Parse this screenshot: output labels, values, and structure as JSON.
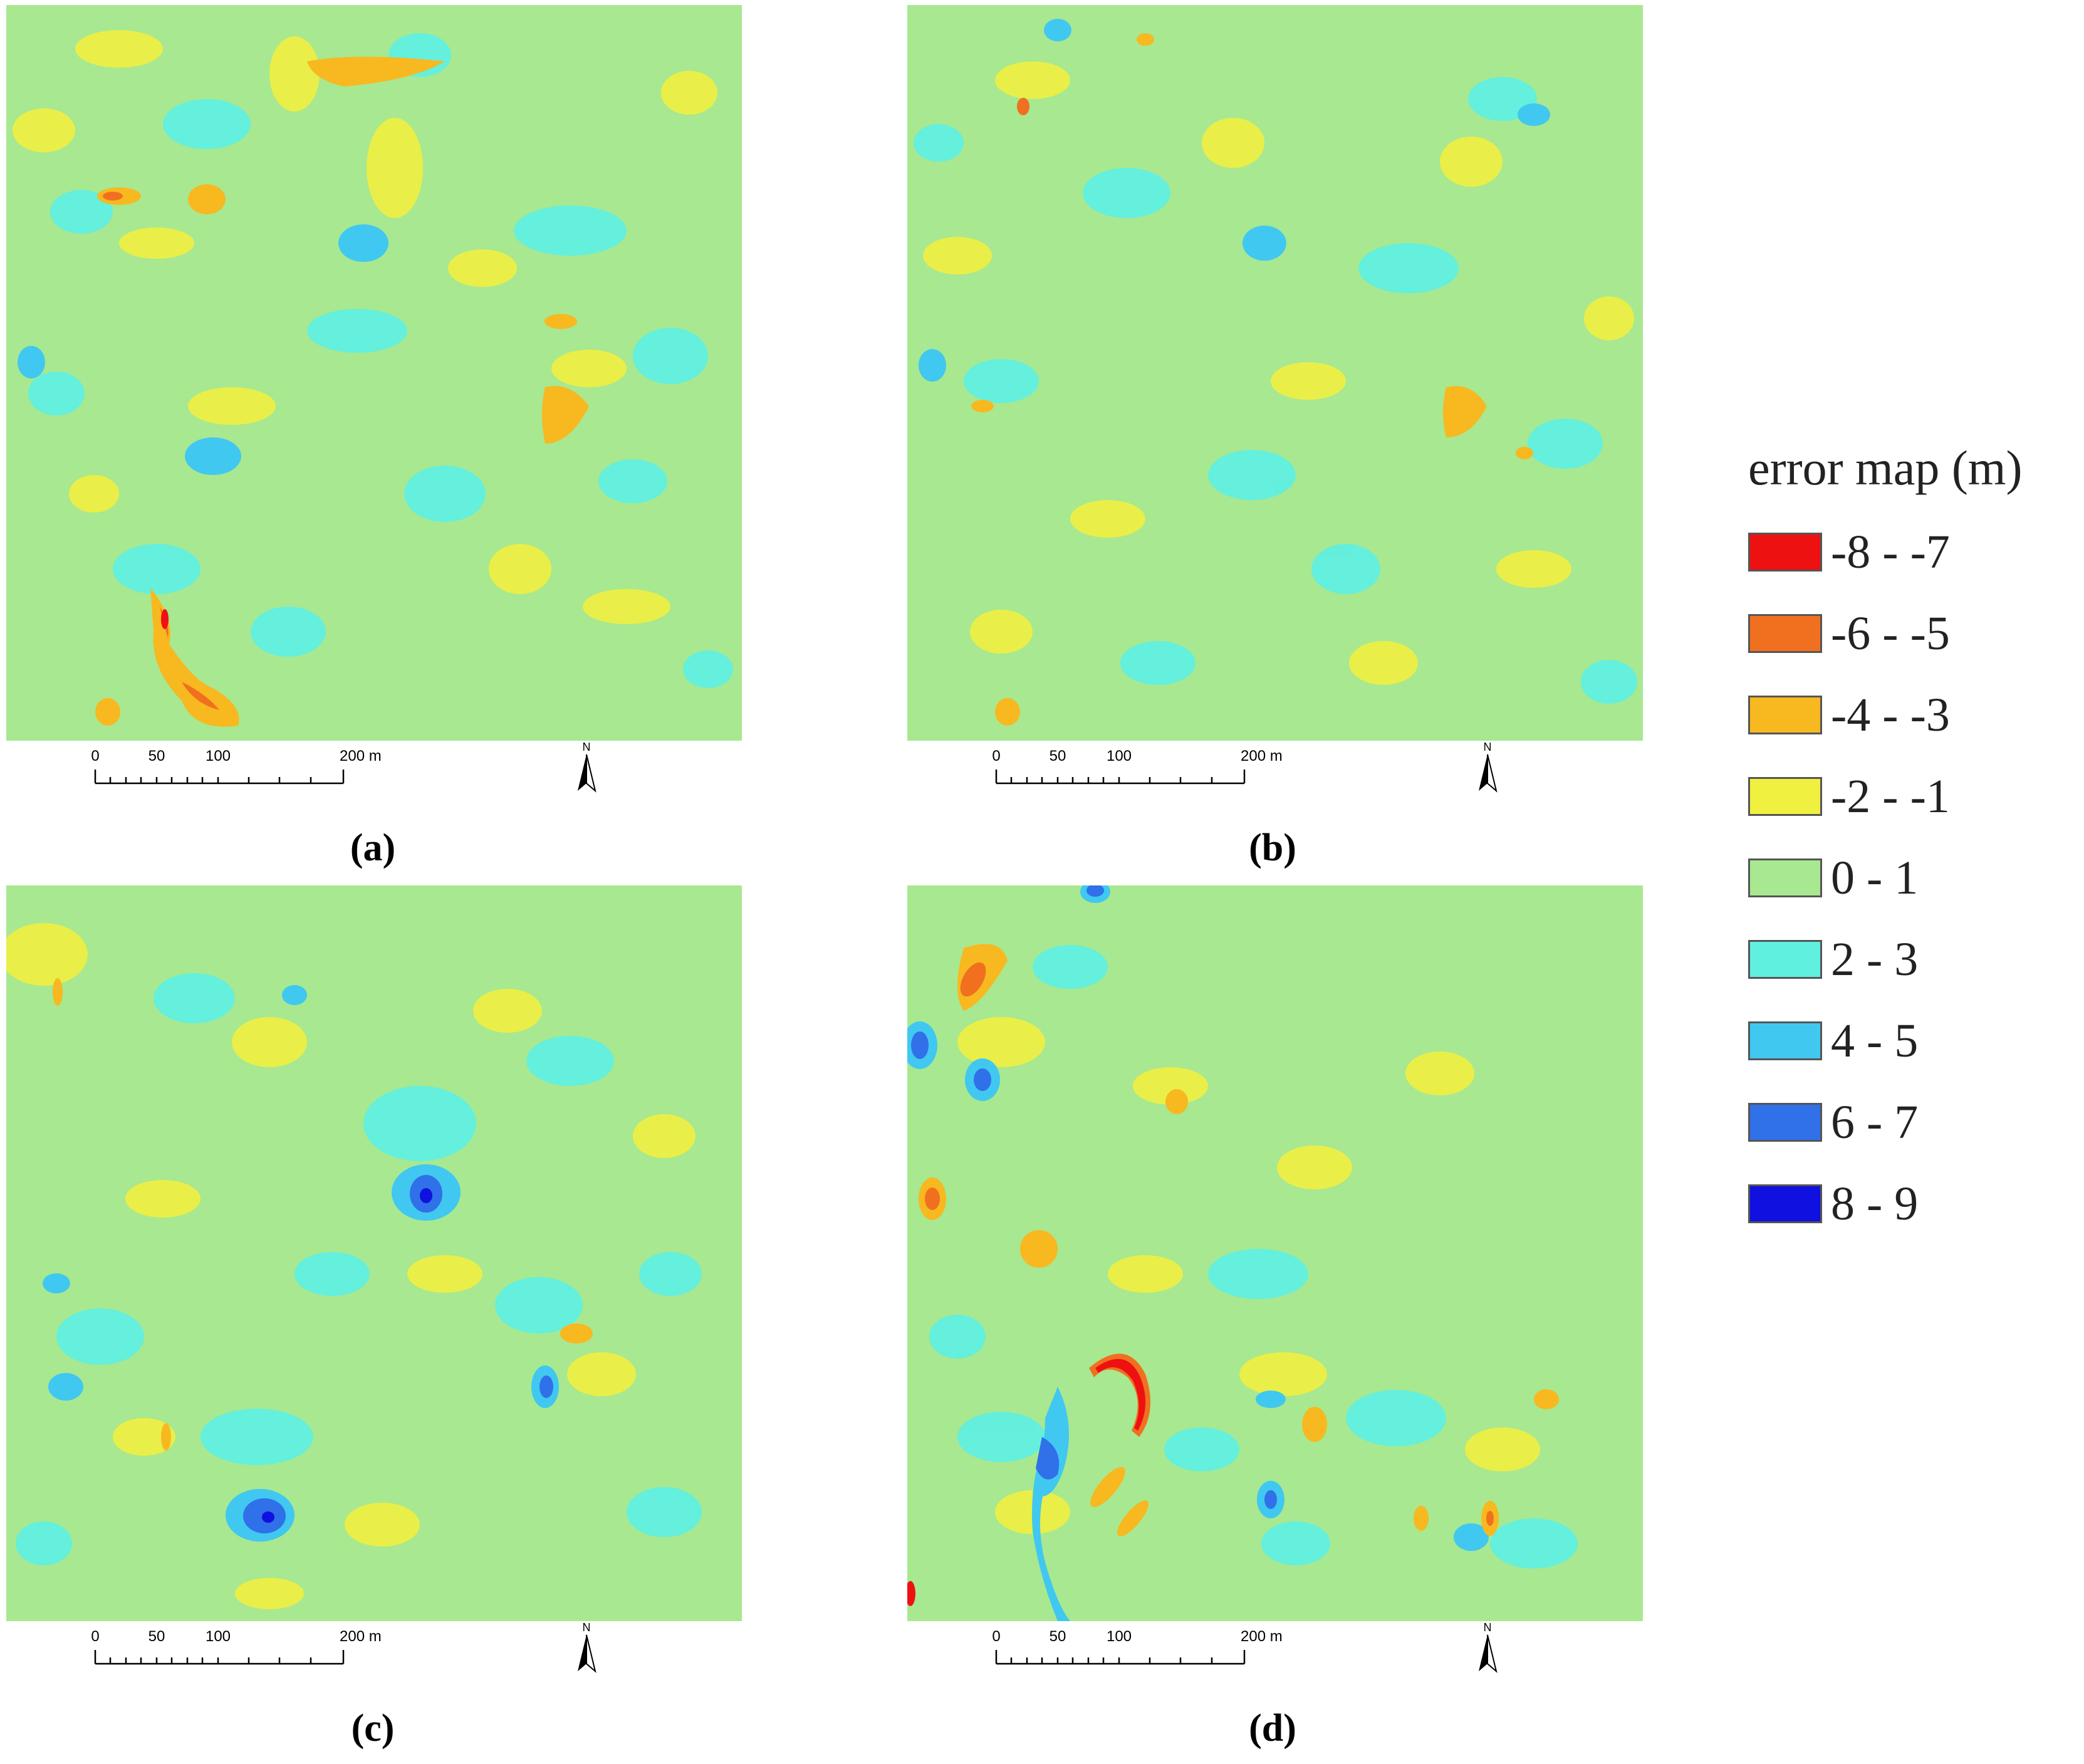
{
  "legend": {
    "title": "error map (m)",
    "classes": [
      {
        "label": "-8 - -7",
        "color": "#ee1111"
      },
      {
        "label": "-6 - -5",
        "color": "#f07020"
      },
      {
        "label": "-4 - -3",
        "color": "#f8b820"
      },
      {
        "label": "-2 - -1",
        "color": "#f0f040"
      },
      {
        "label": "0 - 1",
        "color": "#a8e890"
      },
      {
        "label": "2 - 3",
        "color": "#60f0e0"
      },
      {
        "label": "4 - 5",
        "color": "#40c8f0"
      },
      {
        "label": "6 - 7",
        "color": "#3070e8"
      },
      {
        "label": "8 - 9",
        "color": "#1010e0"
      }
    ]
  },
  "scale_bar": {
    "ticks": [
      "0",
      "50",
      "100",
      "200 m"
    ]
  },
  "north_arrow": {
    "label": "N"
  },
  "panels": [
    {
      "caption": "(a)"
    },
    {
      "caption": "(b)"
    },
    {
      "caption": "(c)"
    },
    {
      "caption": "(d)"
    }
  ]
}
